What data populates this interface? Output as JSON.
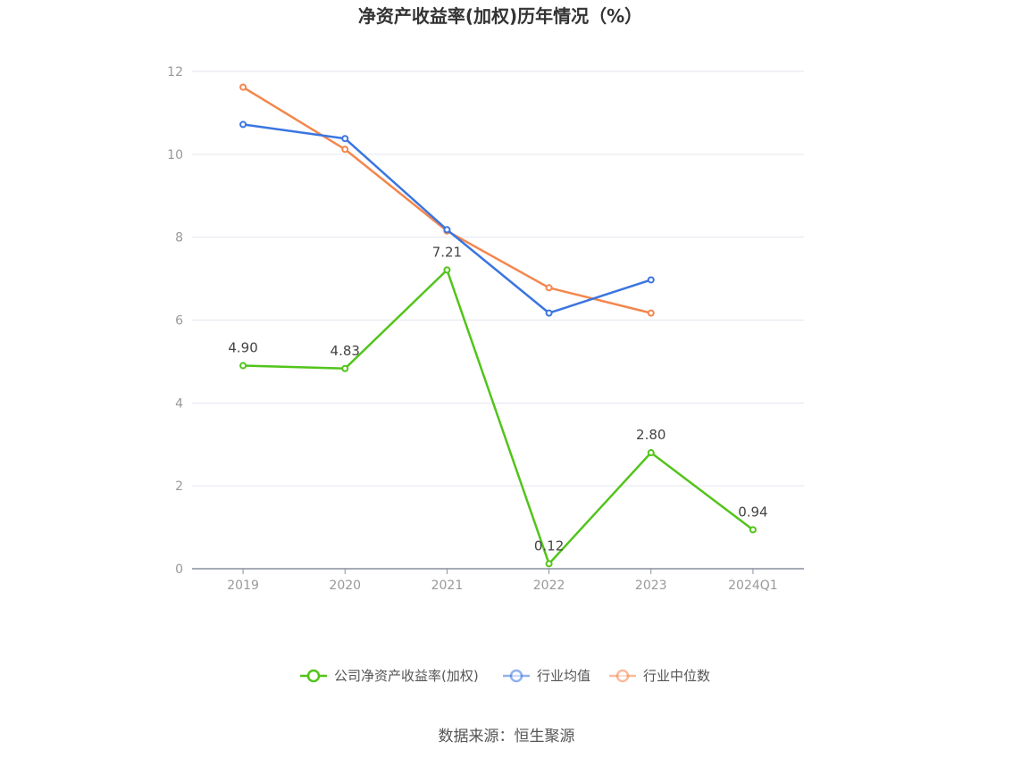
{
  "chart_data": {
    "type": "line",
    "title": "净资产收益率(加权)历年情况（%）",
    "categories": [
      "2019",
      "2020",
      "2021",
      "2022",
      "2023",
      "2024Q1"
    ],
    "ylim": [
      0,
      12
    ],
    "yticks": [
      "0",
      "2",
      "4",
      "6",
      "8",
      "10",
      "12"
    ],
    "grid": true,
    "legend_position": "bottom",
    "series": [
      {
        "name": "公司净资产收益率(加权)",
        "color": "#52c41a",
        "values": [
          4.9,
          4.83,
          7.21,
          0.12,
          2.8,
          0.94
        ],
        "labels": [
          "4.90",
          "4.83",
          "7.21",
          "0.12",
          "2.80",
          "0.94"
        ]
      },
      {
        "name": "行业均值",
        "color": "#3a75e0",
        "values": [
          10.72,
          10.38,
          8.18,
          6.17,
          6.97,
          null
        ]
      },
      {
        "name": "行业中位数",
        "color": "#f4864c",
        "values": [
          11.62,
          10.12,
          8.15,
          6.78,
          6.17,
          null
        ]
      }
    ],
    "source": "数据来源：恒生聚源"
  }
}
